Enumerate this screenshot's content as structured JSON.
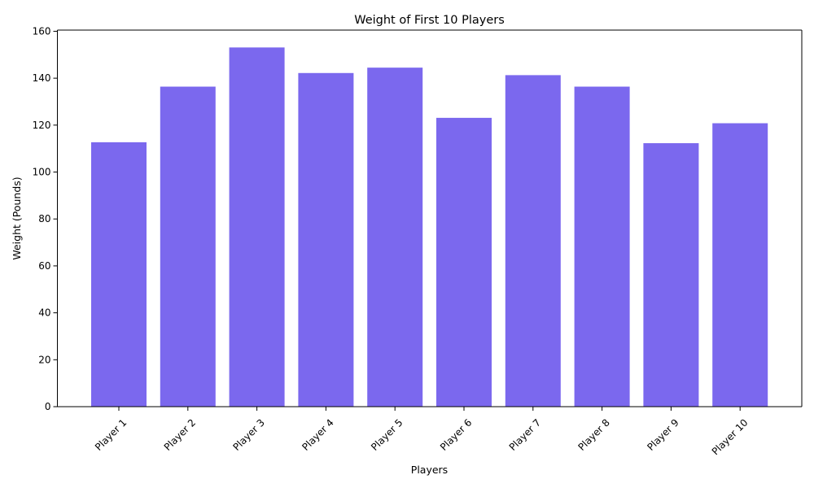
{
  "chart_data": {
    "type": "bar",
    "title": "Weight of First 10 Players",
    "xlabel": "Players",
    "ylabel": "Weight (Pounds)",
    "categories": [
      "Player 1",
      "Player 2",
      "Player 3",
      "Player 4",
      "Player 5",
      "Player 6",
      "Player 7",
      "Player 8",
      "Player 9",
      "Player 10"
    ],
    "values": [
      112.7,
      136.4,
      153.1,
      142.2,
      144.5,
      123.1,
      141.3,
      136.4,
      112.3,
      120.8
    ],
    "ylim": [
      0,
      160.5
    ],
    "yticks": [
      0,
      20,
      40,
      60,
      80,
      100,
      120,
      140,
      160
    ],
    "bar_color": "#7B68EE",
    "grid": false,
    "legend": "none"
  }
}
